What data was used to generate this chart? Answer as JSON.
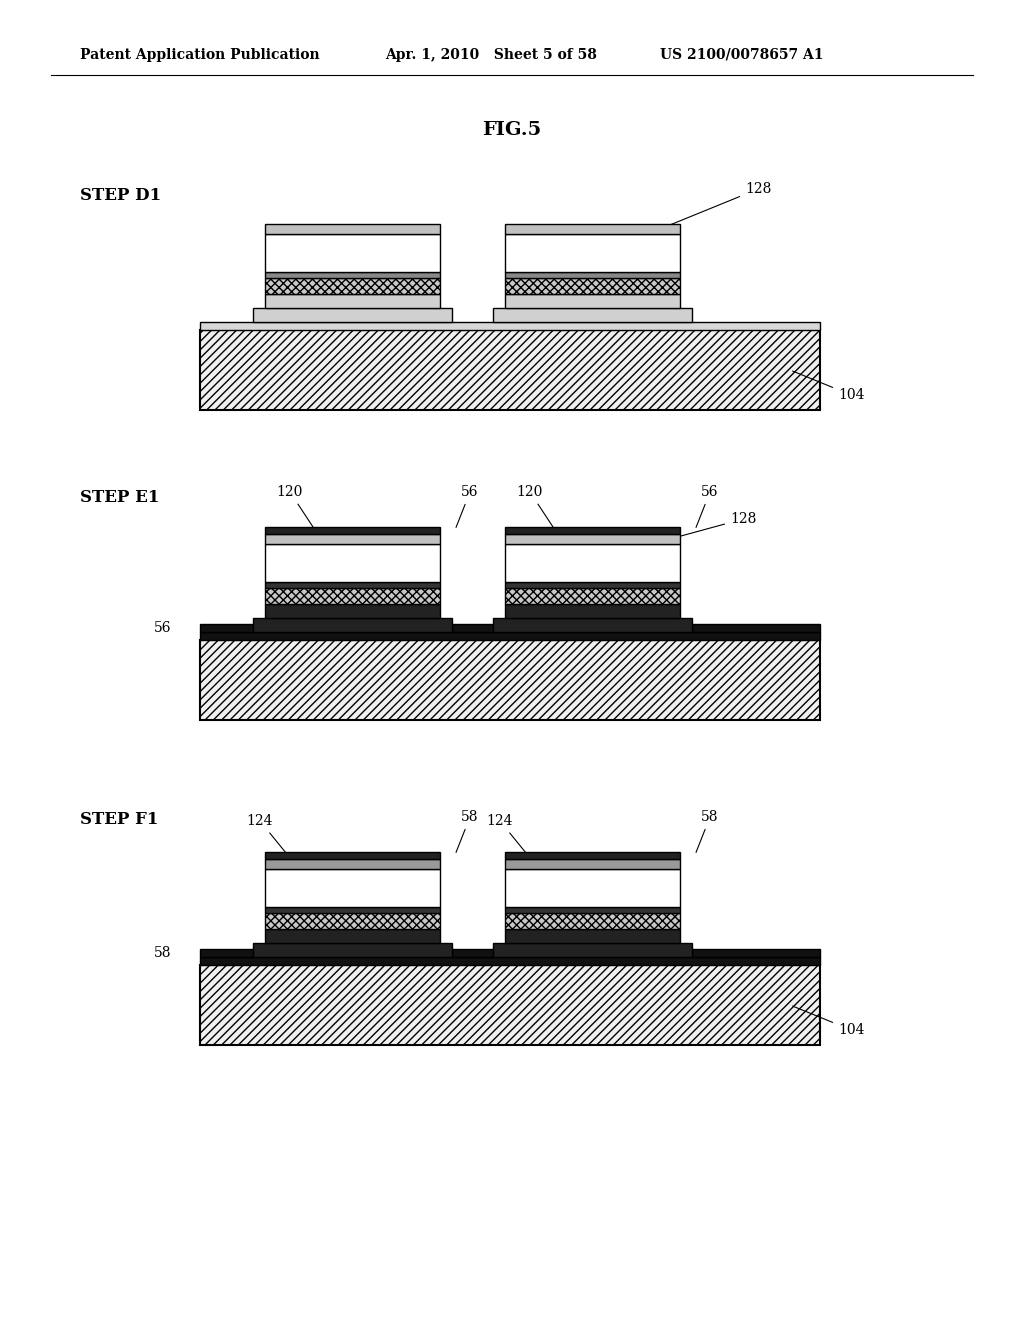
{
  "bg_color": "#ffffff",
  "header_left": "Patent Application Publication",
  "header_mid": "Apr. 1, 2010   Sheet 5 of 58",
  "header_right": "US 2100/0078657 A1",
  "fig_label": "FIG.5",
  "patent_number_correct": "US 2100/0078657 A1",
  "step_labels": [
    "STEP D1",
    "STEP E1",
    "STEP F1"
  ],
  "line_color": "#000000",
  "fill_white": "#ffffff",
  "substrate_fc": "#f0f0f0",
  "mesa_gray": "#d8d8d8",
  "cap_gray": "#b0b0b0",
  "dark_line": "#222222"
}
